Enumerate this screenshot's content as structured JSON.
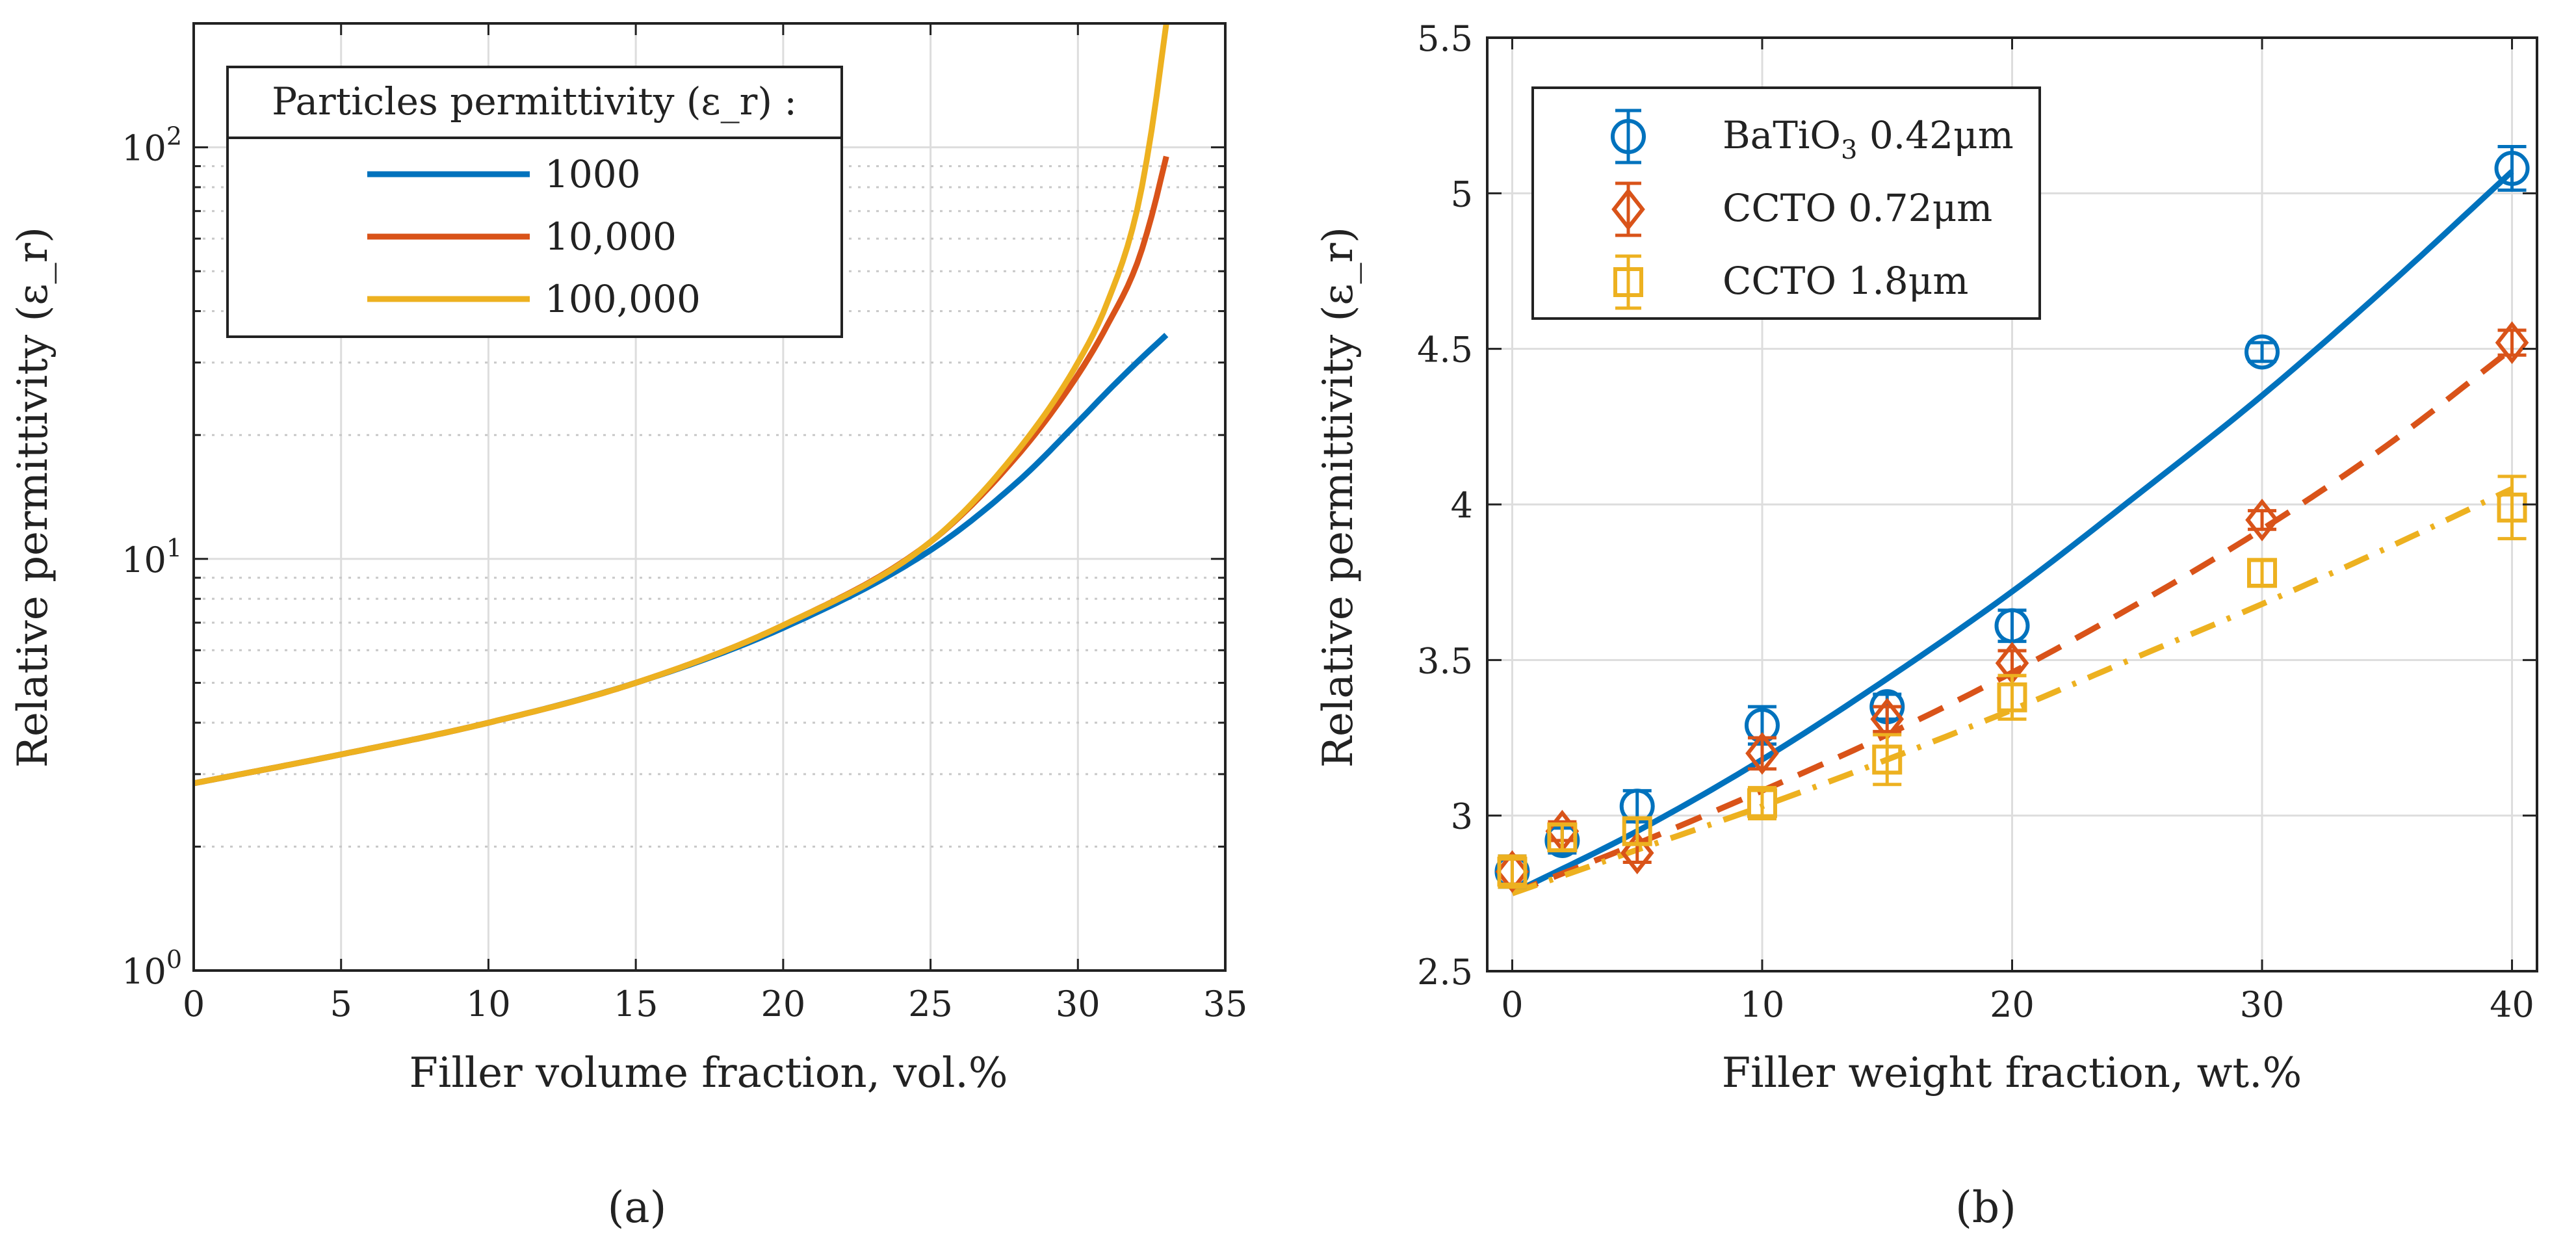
{
  "chart_data": [
    {
      "type": "line",
      "panel_label": "(a)",
      "xlabel": "Filler volume fraction, vol.%",
      "ylabel": "Relative permittivity (ε_r)",
      "yscale": "log",
      "xlim": [
        0,
        35
      ],
      "ylim": [
        1,
        200
      ],
      "x_ticks": [
        "0",
        "5",
        "10",
        "15",
        "20",
        "25",
        "30",
        "35"
      ],
      "y_ticks": [
        "10^0",
        "10^1",
        "10^2"
      ],
      "grid": true,
      "legend_title": "Particles permittivity (ε_r) :",
      "legend_position": "top-left",
      "series": [
        {
          "name": "1000",
          "color": "#0072BD",
          "x": [
            0,
            5,
            10,
            15,
            20,
            25,
            28,
            30,
            31,
            32,
            33
          ],
          "y": [
            2.85,
            3.35,
            4.0,
            5.0,
            6.8,
            10.5,
            15.5,
            21.5,
            25.5,
            30.0,
            35.0
          ]
        },
        {
          "name": "10,000",
          "color": "#D95319",
          "x": [
            0,
            5,
            10,
            15,
            20,
            25,
            28,
            30,
            31,
            32,
            32.5,
            33
          ],
          "y": [
            2.85,
            3.35,
            4.0,
            5.0,
            6.9,
            11.0,
            18.0,
            28.0,
            37.0,
            52.0,
            68.0,
            95.0
          ]
        },
        {
          "name": "100,000",
          "color": "#EDB120",
          "x": [
            0,
            5,
            10,
            15,
            20,
            25,
            28,
            30,
            31,
            32,
            32.5,
            33
          ],
          "y": [
            2.85,
            3.35,
            4.0,
            5.0,
            6.9,
            11.0,
            18.5,
            30.0,
            42.0,
            70.0,
            110.0,
            200.0
          ]
        }
      ]
    },
    {
      "type": "scatter",
      "panel_label": "(b)",
      "xlabel": "Filler weight fraction, wt.%",
      "ylabel": "Relative permittivity (ε_r)",
      "xlim": [
        -1,
        41
      ],
      "ylim": [
        2.5,
        5.5
      ],
      "x_ticks": [
        "0",
        "10",
        "20",
        "30",
        "40"
      ],
      "y_ticks": [
        "2.5",
        "3",
        "3.5",
        "4",
        "4.5",
        "5",
        "5.5"
      ],
      "grid": true,
      "legend_position": "top-left",
      "series": [
        {
          "name": "BaTiO",
          "name_sub": "3",
          "name_suffix": " 0.42μm",
          "marker": "circle",
          "fit_style": "solid",
          "color": "#0072BD",
          "x": [
            0,
            2,
            5,
            10,
            15,
            20,
            30,
            40
          ],
          "y": [
            2.82,
            2.92,
            3.03,
            3.29,
            3.35,
            3.61,
            4.49,
            5.08
          ],
          "err": [
            0.05,
            0.04,
            0.05,
            0.06,
            0.04,
            0.05,
            0.03,
            0.07
          ],
          "fit_x": [
            0,
            5,
            10,
            15,
            20,
            25,
            30,
            35,
            40
          ],
          "fit_y": [
            2.75,
            2.95,
            3.18,
            3.44,
            3.72,
            4.03,
            4.35,
            4.7,
            5.07
          ]
        },
        {
          "name": "CCTO 0.72μm",
          "marker": "diamond",
          "fit_style": "dashed",
          "color": "#D95319",
          "x": [
            0,
            2,
            5,
            10,
            15,
            20,
            30,
            40
          ],
          "y": [
            2.82,
            2.95,
            2.88,
            3.2,
            3.31,
            3.49,
            3.95,
            4.52
          ],
          "err": [
            0.04,
            0.03,
            0.03,
            0.05,
            0.04,
            0.04,
            0.03,
            0.04
          ],
          "fit_x": [
            0,
            5,
            10,
            15,
            20,
            25,
            30,
            35,
            40
          ],
          "fit_y": [
            2.75,
            2.91,
            3.08,
            3.26,
            3.46,
            3.68,
            3.92,
            4.19,
            4.5
          ]
        },
        {
          "name": "CCTO 1.8μm",
          "marker": "square",
          "fit_style": "dashdot",
          "color": "#EDB120",
          "x": [
            0,
            2,
            5,
            10,
            15,
            20,
            30,
            40
          ],
          "y": [
            2.82,
            2.93,
            2.95,
            3.04,
            3.18,
            3.38,
            3.78,
            3.99
          ],
          "err": [
            0.05,
            0.04,
            0.04,
            0.05,
            0.08,
            0.07,
            0.04,
            0.1
          ],
          "fit_x": [
            0,
            5,
            10,
            15,
            20,
            25,
            30,
            35,
            40
          ],
          "fit_y": [
            2.75,
            2.89,
            3.03,
            3.18,
            3.34,
            3.51,
            3.68,
            3.86,
            4.05
          ]
        }
      ]
    }
  ]
}
